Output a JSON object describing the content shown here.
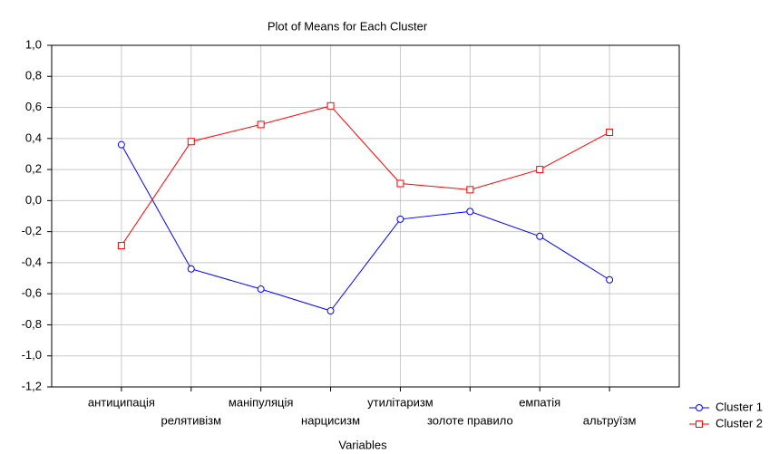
{
  "chart_data": {
    "type": "line",
    "title": "Plot of Means for Each Cluster",
    "x_label": "Variables",
    "categories": [
      "антиципація",
      "релятивізм",
      "маніпуляція",
      "нарцисизм",
      "утилітаризм",
      "золоте правило",
      "емпатія",
      "альтруїзм"
    ],
    "series": [
      {
        "name": "Cluster  1",
        "color": "#0000ff",
        "marker": "circle",
        "values": [
          0.36,
          -0.44,
          -0.57,
          -0.71,
          -0.12,
          -0.07,
          -0.23,
          -0.51
        ]
      },
      {
        "name": "Cluster  2",
        "color": "#ff0000",
        "marker": "square",
        "values": [
          -0.29,
          0.38,
          0.49,
          0.61,
          0.11,
          0.07,
          0.2,
          0.44
        ]
      }
    ],
    "ylim": [
      -1.2,
      1.0
    ],
    "yticks": [
      {
        "value": -1.2,
        "label": "-1,2"
      },
      {
        "value": -1.0,
        "label": "-1,0"
      },
      {
        "value": -0.8,
        "label": "-0,8"
      },
      {
        "value": -0.6,
        "label": "-0,6"
      },
      {
        "value": -0.4,
        "label": "-0,4"
      },
      {
        "value": -0.2,
        "label": "-0,2"
      },
      {
        "value": 0,
        "label": "0,0"
      },
      {
        "value": 0.2,
        "label": "0,2"
      },
      {
        "value": 0.4,
        "label": "0,4"
      },
      {
        "value": 0.6,
        "label": "0,6"
      },
      {
        "value": 0.8,
        "label": "0,8"
      },
      {
        "value": 1.0,
        "label": "1,0"
      }
    ],
    "grid": true,
    "legend": "right"
  }
}
